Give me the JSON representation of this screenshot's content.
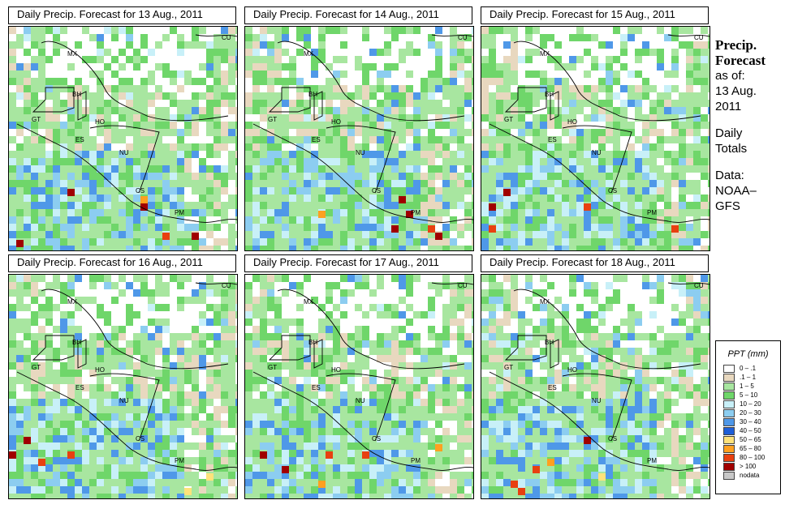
{
  "panels": [
    {
      "title": "Daily Precip. Forecast for  13 Aug., 2011"
    },
    {
      "title": "Daily Precip. Forecast for  14 Aug., 2011"
    },
    {
      "title": "Daily Precip. Forecast for  15 Aug., 2011"
    },
    {
      "title": "Daily Precip. Forecast for  16 Aug., 2011"
    },
    {
      "title": "Daily Precip. Forecast for  17 Aug., 2011"
    },
    {
      "title": "Daily Precip. Forecast for  18 Aug., 2011"
    }
  ],
  "country_labels": [
    "CU",
    "MX",
    "BH",
    "GT",
    "HO",
    "ES",
    "NU",
    "CS",
    "PM"
  ],
  "side_info": {
    "heading_1": "Precip.",
    "heading_2": "Forecast",
    "as_of": "as of:",
    "date_1": "13 Aug.",
    "date_2": "2011",
    "totals_1": "Daily",
    "totals_2": "Totals",
    "data_1": "Data:",
    "data_2": "NOAA–",
    "data_3": "GFS"
  },
  "legend": {
    "title": "PPT (mm)",
    "items": [
      {
        "label": "0 – .1",
        "color": "#ffffff"
      },
      {
        "label": ".1 – 1",
        "color": "#e8d8bf"
      },
      {
        "label": "1 – 5",
        "color": "#a8e6a0"
      },
      {
        "label": "5 – 10",
        "color": "#6fd66a"
      },
      {
        "label": "10 – 20",
        "color": "#c8f0f8"
      },
      {
        "label": "20 – 30",
        "color": "#8ccdf0"
      },
      {
        "label": "30 – 40",
        "color": "#4f98e8"
      },
      {
        "label": "40 – 50",
        "color": "#1f5fd8"
      },
      {
        "label": "50 – 65",
        "color": "#ffe27a"
      },
      {
        "label": "65 – 80",
        "color": "#ffa020"
      },
      {
        "label": "80 – 100",
        "color": "#e84010"
      },
      {
        "label": "> 100",
        "color": "#a00000"
      },
      {
        "label": "nodata",
        "color": "#c8c8c8"
      }
    ]
  }
}
